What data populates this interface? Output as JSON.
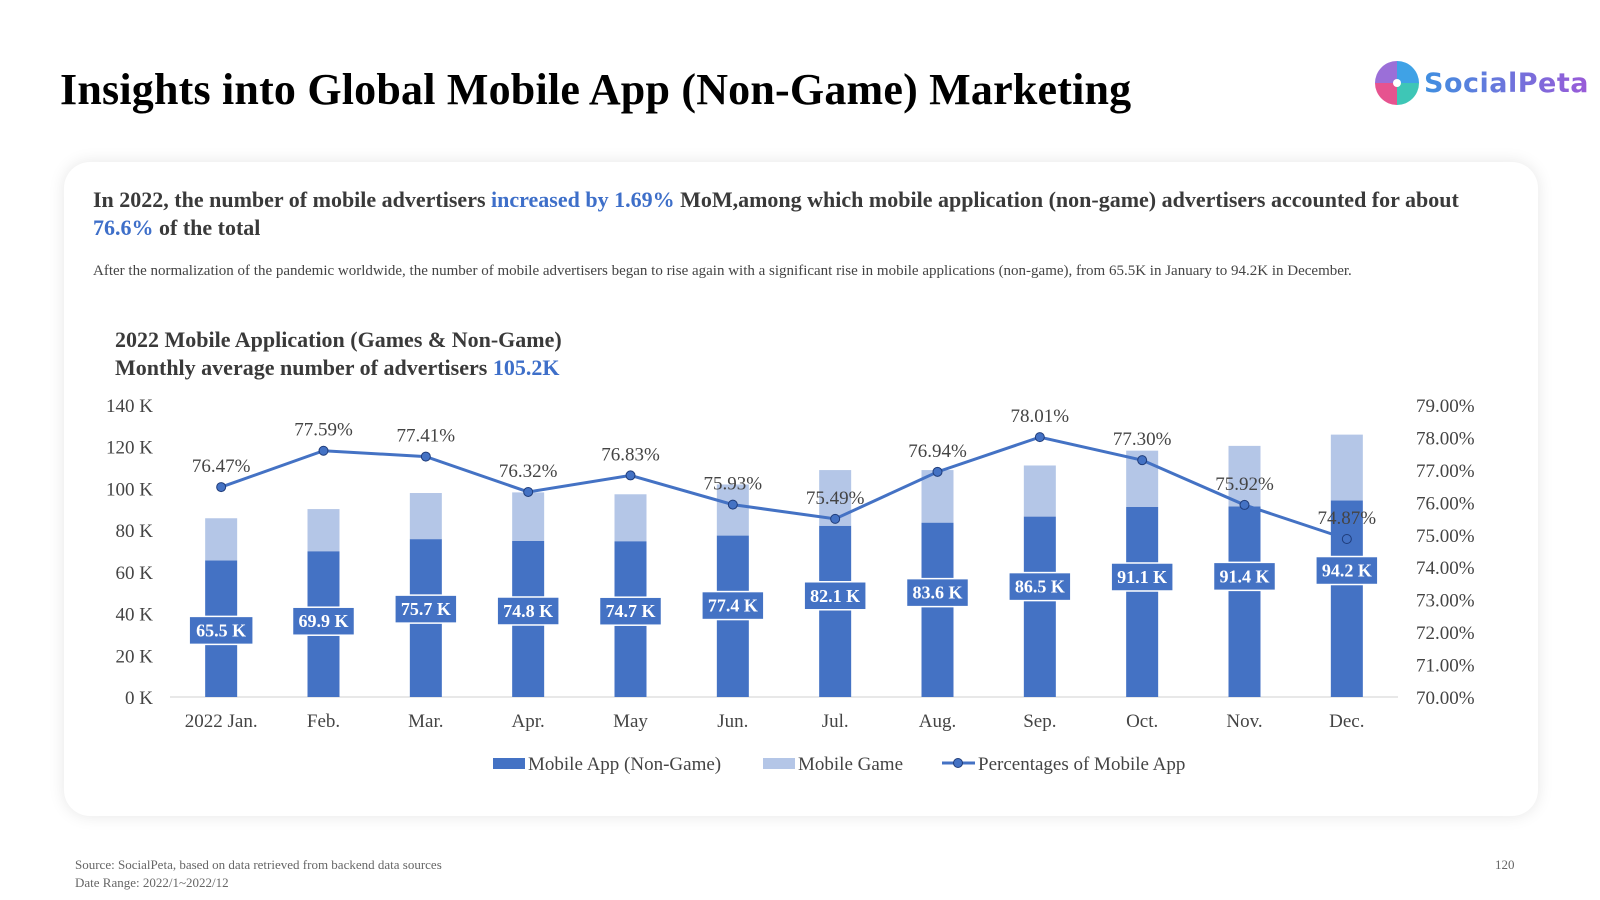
{
  "header": {
    "title": "Insights into Global Mobile App (Non-Game) Marketing",
    "logo_text": "SocialPeta"
  },
  "summary": {
    "headline_part1": "In 2022, the number of mobile advertisers ",
    "headline_highlight1": "increased by 1.69%",
    "headline_part2": " MoM,among which mobile application (non-game) advertisers accounted for about ",
    "headline_highlight2": "76.6%",
    "headline_part3": " of the total",
    "description": "After the normalization of the pandemic worldwide, the number of mobile advertisers began to rise again with a significant rise in mobile applications (non-game), from 65.5K in January to 94.2K in December."
  },
  "chart_header": {
    "line1": "2022 Mobile Application (Games & Non-Game)",
    "line2_prefix": "Monthly average number of advertisers ",
    "line2_value": "105.2K"
  },
  "chart_data": {
    "type": "bar",
    "stacked": true,
    "categories": [
      "2022 Jan.",
      "Feb.",
      "Mar.",
      "Apr.",
      "May",
      "Jun.",
      "Jul.",
      "Aug.",
      "Sep.",
      "Oct.",
      "Nov.",
      "Dec."
    ],
    "series": [
      {
        "name": "Mobile App (Non-Game)",
        "type": "bar",
        "axis": "left",
        "color": "#4472c4",
        "values": [
          65.5,
          69.9,
          75.7,
          74.8,
          74.7,
          77.4,
          82.1,
          83.6,
          86.5,
          91.1,
          91.4,
          94.2
        ],
        "labels": [
          "65.5 K",
          "69.9 K",
          "75.7 K",
          "74.8 K",
          "74.7 K",
          "77.4 K",
          "82.1 K",
          "83.6 K",
          "86.5 K",
          "91.1 K",
          "91.4 K",
          "94.2 K"
        ]
      },
      {
        "name": "Mobile Game",
        "type": "bar",
        "axis": "left",
        "color": "#b4c6e7",
        "values": [
          20.2,
          20.2,
          22.1,
          23.3,
          22.5,
          24.5,
          26.7,
          25.2,
          24.5,
          27.0,
          29.0,
          31.6
        ]
      },
      {
        "name": "Percentages of Mobile App",
        "type": "line",
        "axis": "right",
        "color": "#4472c4",
        "values": [
          76.47,
          77.59,
          77.41,
          76.32,
          76.83,
          75.93,
          75.49,
          76.94,
          78.01,
          77.3,
          75.92,
          74.87
        ],
        "labels": [
          "76.47%",
          "77.59%",
          "77.41%",
          "76.32%",
          "76.83%",
          "75.93%",
          "75.49%",
          "76.94%",
          "78.01%",
          "77.30%",
          "75.92%",
          "74.87%"
        ]
      }
    ],
    "y_left": {
      "range": [
        0,
        140
      ],
      "ticks": [
        0,
        20,
        40,
        60,
        80,
        100,
        120,
        140
      ],
      "tick_labels": [
        "0 K",
        "20 K",
        "40 K",
        "60 K",
        "80 K",
        "100 K",
        "120 K",
        "140 K"
      ]
    },
    "y_right": {
      "range": [
        70,
        79
      ],
      "ticks": [
        70,
        71,
        72,
        73,
        74,
        75,
        76,
        77,
        78,
        79
      ],
      "tick_labels": [
        "70.00%",
        "71.00%",
        "72.00%",
        "73.00%",
        "74.00%",
        "75.00%",
        "76.00%",
        "77.00%",
        "78.00%",
        "79.00%"
      ]
    },
    "grid": false,
    "legend_position": "bottom"
  },
  "footer": {
    "source": "Source: SocialPeta, based on data retrieved from backend data sources",
    "date_range": "Date Range:  2022/1~2022/12",
    "page_number": "120"
  }
}
